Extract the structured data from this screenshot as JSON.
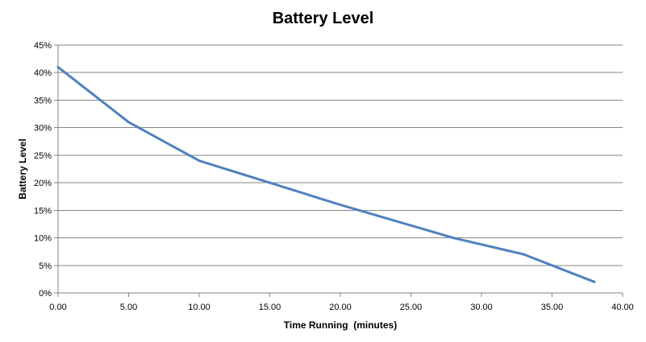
{
  "chart_data": {
    "type": "line",
    "title": "Battery Level",
    "xlabel": "Time Running  (minutes)",
    "ylabel": "Battery Level",
    "xlim": [
      0,
      40
    ],
    "ylim": [
      0,
      0.45
    ],
    "x_ticks": [
      "0.00",
      "5.00",
      "10.00",
      "15.00",
      "20.00",
      "25.00",
      "30.00",
      "35.00",
      "40.00"
    ],
    "y_ticks": [
      "0%",
      "5%",
      "10%",
      "15%",
      "20%",
      "25%",
      "30%",
      "35%",
      "40%",
      "45%"
    ],
    "grid": "horizontal",
    "legend": "none",
    "series": [
      {
        "color": "#4f81bd",
        "x": [
          0,
          5,
          10,
          15,
          20,
          28,
          33,
          38
        ],
        "y": [
          0.41,
          0.31,
          0.24,
          0.2,
          0.16,
          0.1,
          0.07,
          0.02
        ]
      }
    ]
  }
}
